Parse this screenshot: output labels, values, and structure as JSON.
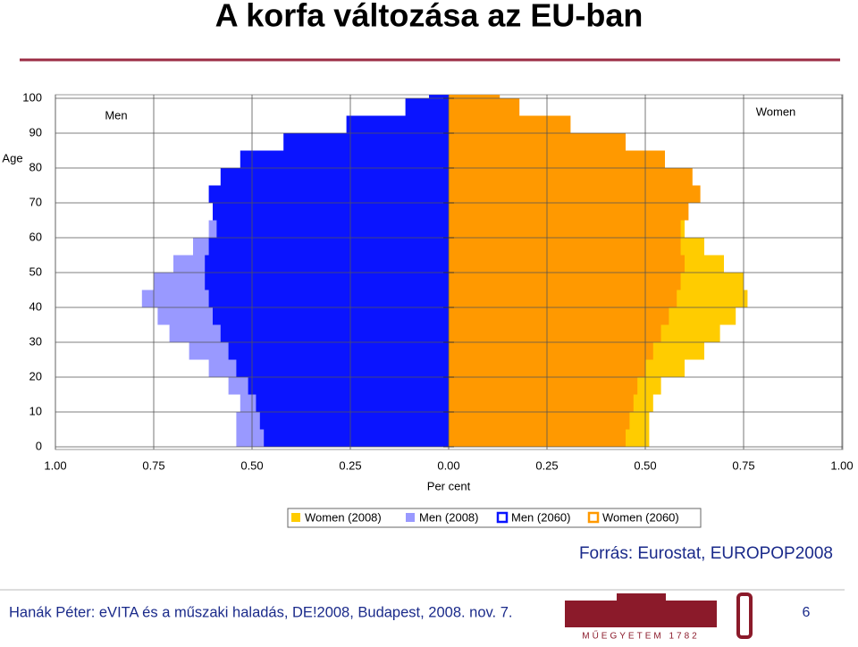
{
  "slide": {
    "title": "A korfa változása az EU-ban",
    "source": "Forrás: Eurostat, EUROPOP2008",
    "footer": "Hanák Péter: eVITA és a műszaki haladás, DE!2008, Budapest, 2008. nov. 7.",
    "logo_text": "MŰEGYETEM 1782",
    "page": "6"
  },
  "chart_data": {
    "type": "pyramid",
    "y_label": "Age",
    "x_label": "Per cent",
    "left_label": "Men",
    "right_label": "Women",
    "x": [
      0,
      5,
      10,
      15,
      20,
      25,
      30,
      35,
      40,
      45,
      50,
      55,
      60,
      65,
      70,
      75,
      80,
      85,
      90,
      95,
      100
    ],
    "series": [
      {
        "name": "Women (2008)",
        "color": "#ffcc00",
        "side": "right",
        "marker": "filled",
        "values": [
          0.51,
          0.51,
          0.52,
          0.54,
          0.6,
          0.65,
          0.69,
          0.73,
          0.76,
          0.75,
          0.7,
          0.65,
          0.6,
          0.52,
          0.48,
          0.42,
          0.33,
          0.22,
          0.12,
          0.04,
          0.01
        ]
      },
      {
        "name": "Men (2008)",
        "color": "#9999ff",
        "side": "left",
        "marker": "filled",
        "values": [
          0.54,
          0.54,
          0.53,
          0.56,
          0.61,
          0.66,
          0.71,
          0.74,
          0.78,
          0.75,
          0.7,
          0.65,
          0.61,
          0.55,
          0.45,
          0.35,
          0.25,
          0.15,
          0.07,
          0.02,
          0.005
        ]
      },
      {
        "name": "Men (2060)",
        "color": "#0a14ff",
        "side": "left",
        "marker": "outline",
        "values": [
          0.47,
          0.48,
          0.49,
          0.51,
          0.54,
          0.56,
          0.58,
          0.6,
          0.61,
          0.62,
          0.62,
          0.61,
          0.59,
          0.6,
          0.61,
          0.58,
          0.53,
          0.42,
          0.26,
          0.11,
          0.05
        ]
      },
      {
        "name": "Women (2060)",
        "color": "#ff9900",
        "side": "right",
        "marker": "outline",
        "values": [
          0.45,
          0.46,
          0.47,
          0.48,
          0.5,
          0.52,
          0.54,
          0.56,
          0.58,
          0.59,
          0.6,
          0.59,
          0.59,
          0.61,
          0.64,
          0.62,
          0.55,
          0.45,
          0.31,
          0.18,
          0.13
        ]
      }
    ],
    "xlim": [
      0,
      1
    ],
    "xticks": [
      {
        "value": 0,
        "label": "0.00"
      },
      {
        "value": 0.25,
        "label": "0.25"
      },
      {
        "value": 0.5,
        "label": "0.50"
      },
      {
        "value": 0.75,
        "label": "0.75"
      },
      {
        "value": 1,
        "label": "1.00"
      }
    ],
    "ylim": [
      0,
      100
    ],
    "yticks": [
      0,
      10,
      20,
      30,
      40,
      50,
      60,
      70,
      80,
      90,
      100
    ],
    "grid": true
  }
}
